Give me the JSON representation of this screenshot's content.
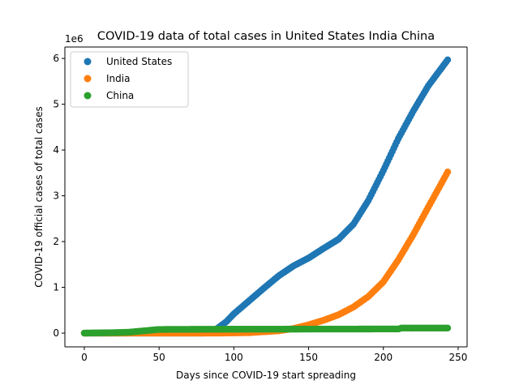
{
  "chart_data": {
    "type": "scatter",
    "title": "COVID-19 data of total cases in United States India China",
    "xlabel": "Days since COVID-19 start spreading",
    "ylabel": "COVID-19 official cases of total cases",
    "offset_text": "1e6",
    "xlim": [
      -13,
      256
    ],
    "ylim": [
      -0.3,
      6.25
    ],
    "x_ticks": [
      0,
      50,
      100,
      150,
      200,
      250
    ],
    "y_ticks": [
      0,
      1,
      2,
      3,
      4,
      5,
      6
    ],
    "grid": false,
    "legend_position": "upper-left",
    "y_units": "millions of cases (×1e6)",
    "series": [
      {
        "name": "United States",
        "color": "#1f77b4",
        "key_points": [
          [
            0,
            0
          ],
          [
            80,
            0
          ],
          [
            88,
            0.08
          ],
          [
            95,
            0.25
          ],
          [
            100,
            0.42
          ],
          [
            110,
            0.7
          ],
          [
            120,
            0.98
          ],
          [
            130,
            1.25
          ],
          [
            140,
            1.47
          ],
          [
            150,
            1.64
          ],
          [
            160,
            1.85
          ],
          [
            170,
            2.05
          ],
          [
            180,
            2.38
          ],
          [
            190,
            2.9
          ],
          [
            200,
            3.55
          ],
          [
            210,
            4.25
          ],
          [
            220,
            4.85
          ],
          [
            230,
            5.4
          ],
          [
            243,
            5.97
          ]
        ]
      },
      {
        "name": "India",
        "color": "#ff7f0e",
        "key_points": [
          [
            0,
            0
          ],
          [
            90,
            0
          ],
          [
            110,
            0.01
          ],
          [
            130,
            0.05
          ],
          [
            140,
            0.1
          ],
          [
            150,
            0.18
          ],
          [
            160,
            0.28
          ],
          [
            170,
            0.4
          ],
          [
            180,
            0.57
          ],
          [
            190,
            0.8
          ],
          [
            200,
            1.12
          ],
          [
            210,
            1.6
          ],
          [
            220,
            2.15
          ],
          [
            230,
            2.75
          ],
          [
            243,
            3.52
          ]
        ]
      },
      {
        "name": "China",
        "color": "#2ca02c",
        "key_points": [
          [
            0,
            0
          ],
          [
            20,
            0.01
          ],
          [
            30,
            0.02
          ],
          [
            40,
            0.05
          ],
          [
            50,
            0.08
          ],
          [
            90,
            0.085
          ],
          [
            200,
            0.09
          ],
          [
            210,
            0.09
          ],
          [
            212,
            0.11
          ],
          [
            243,
            0.11
          ]
        ]
      }
    ]
  }
}
